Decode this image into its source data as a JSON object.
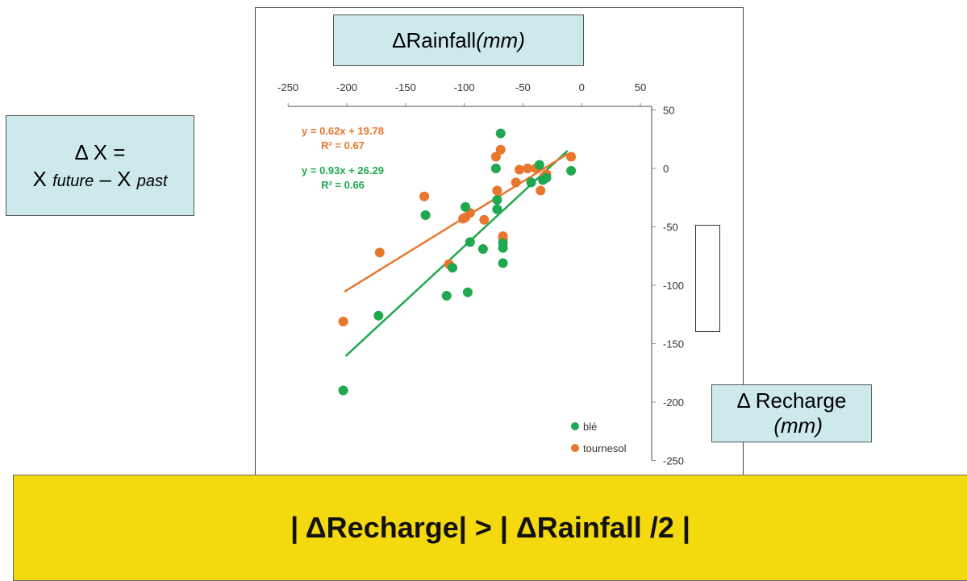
{
  "title": {
    "symbol": "Δ",
    "text": "Rainfall",
    "unit": "(mm)"
  },
  "definition": {
    "line1": "Δ X =",
    "x1": "X ",
    "future": "future",
    "dash": " – X ",
    "past": "past"
  },
  "ylabel": {
    "line1": "Δ Recharge",
    "line2": "(mm)"
  },
  "banner": "| ΔRecharge| > | ΔRainfall /2 |",
  "colors": {
    "ble": "#1fa84f",
    "tournesol": "#e8762d",
    "box": "#cde9ec",
    "banner": "#f5d90f"
  },
  "chart_data": {
    "type": "scatter",
    "x_ticks": [
      "-250",
      "-200",
      "-150",
      "-100",
      "-50",
      "0",
      "50"
    ],
    "y_ticks": [
      "50",
      "0",
      "-50",
      "-100",
      "-150",
      "-200",
      "-250"
    ],
    "xlim": [
      -250,
      50
    ],
    "ylim": [
      -250,
      50
    ],
    "legend_position": "bottom-right",
    "series": [
      {
        "name": "blé",
        "color": "#1fa84f",
        "equation": "y = 0.93x + 26.29",
        "r2": "R² = 0.66",
        "fit": {
          "slope": 0.93,
          "intercept": 26.29,
          "x_range": [
            -201,
            -12
          ]
        },
        "points": [
          [
            -203,
            -190
          ],
          [
            -173,
            -126
          ],
          [
            -133,
            -40
          ],
          [
            -115,
            -109
          ],
          [
            -110,
            -85
          ],
          [
            -99,
            -33
          ],
          [
            -97,
            -106
          ],
          [
            -95,
            -63
          ],
          [
            -84,
            -69
          ],
          [
            -72,
            -35
          ],
          [
            -72,
            -27
          ],
          [
            -73,
            0
          ],
          [
            -69,
            30
          ],
          [
            -67,
            -81
          ],
          [
            -67,
            -68
          ],
          [
            -67,
            -64
          ],
          [
            -43,
            -12
          ],
          [
            -36,
            3
          ],
          [
            -33,
            -10
          ],
          [
            -30,
            -8
          ],
          [
            -9,
            -2
          ]
        ]
      },
      {
        "name": "tournesol",
        "color": "#e8762d",
        "equation": "y = 0.62x + 19.78",
        "r2": "R² = 0.67",
        "fit": {
          "slope": 0.62,
          "intercept": 19.78,
          "x_range": [
            -202,
            -12
          ]
        },
        "points": [
          [
            -203,
            -131
          ],
          [
            -172,
            -72
          ],
          [
            -134,
            -24
          ],
          [
            -113,
            -82
          ],
          [
            -101,
            -43
          ],
          [
            -99,
            -42
          ],
          [
            -95,
            -38
          ],
          [
            -83,
            -44
          ],
          [
            -73,
            10
          ],
          [
            -72,
            -19
          ],
          [
            -69,
            16
          ],
          [
            -67,
            -60
          ],
          [
            -67,
            -58
          ],
          [
            -56,
            -12
          ],
          [
            -53,
            -1
          ],
          [
            -46,
            0
          ],
          [
            -39,
            0
          ],
          [
            -35,
            -19
          ],
          [
            -32,
            -7
          ],
          [
            -30,
            -5
          ],
          [
            -9,
            10
          ]
        ]
      }
    ]
  }
}
